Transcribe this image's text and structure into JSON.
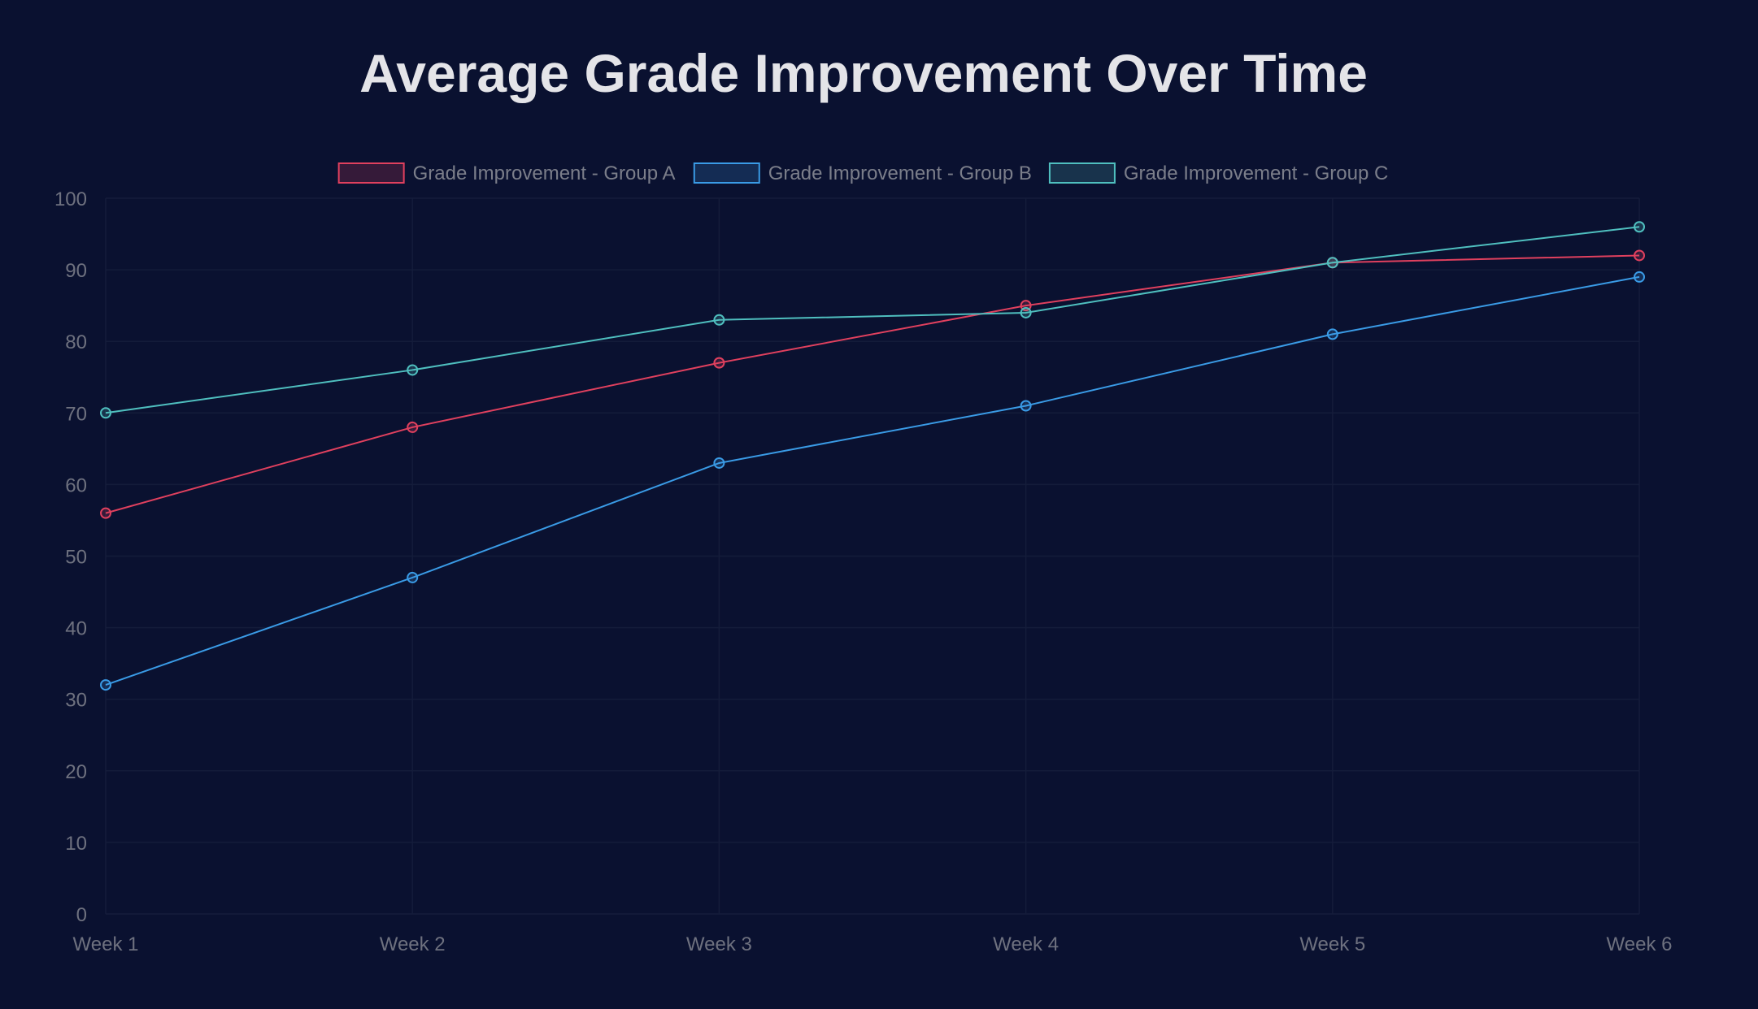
{
  "chart_data": {
    "type": "line",
    "title": "Average Grade Improvement Over Time",
    "categories": [
      "Week 1",
      "Week 2",
      "Week 3",
      "Week 4",
      "Week 5",
      "Week 6"
    ],
    "series": [
      {
        "name": "Grade Improvement - Group A",
        "color": "#e0405e",
        "values": [
          56,
          68,
          77,
          85,
          91,
          92
        ]
      },
      {
        "name": "Grade Improvement - Group B",
        "color": "#3a9be6",
        "values": [
          32,
          47,
          63,
          71,
          81,
          89
        ]
      },
      {
        "name": "Grade Improvement - Group C",
        "color": "#4fbfbf",
        "values": [
          70,
          76,
          83,
          84,
          91,
          96
        ]
      }
    ],
    "xlabel": "",
    "ylabel": "",
    "ylim": [
      0,
      100
    ],
    "yticks": [
      0,
      10,
      20,
      30,
      40,
      50,
      60,
      70,
      80,
      90,
      100
    ],
    "grid": true,
    "legend": "top-center"
  },
  "colors": {
    "background": "#0a1130",
    "title": "#e4e4e8",
    "tick_text": "#6e717f",
    "legend_text": "#7b7e8a",
    "grid": "#141c3a"
  }
}
